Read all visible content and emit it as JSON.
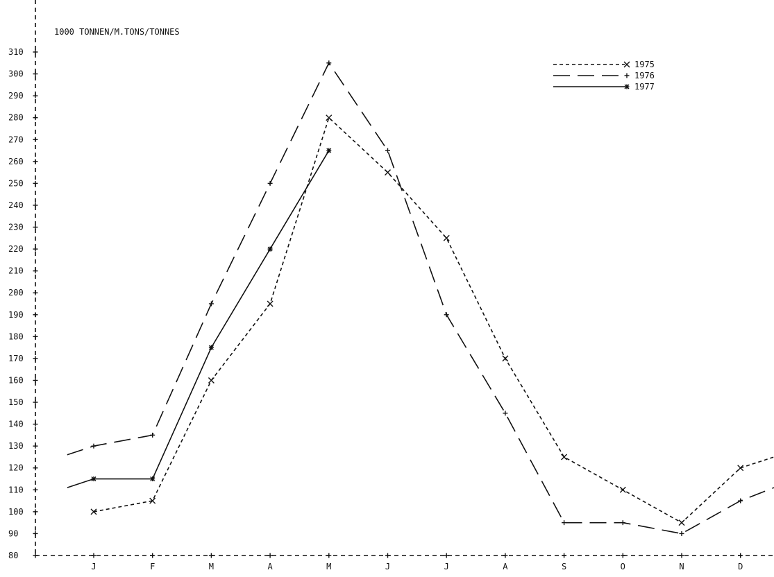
{
  "chart_data": {
    "type": "line",
    "title": "1000 TONNEN/M.TONS/TONNES",
    "categories": [
      "J",
      "F",
      "M",
      "A",
      "M",
      "J",
      "J",
      "A",
      "S",
      "O",
      "N",
      "D"
    ],
    "ylim": [
      80,
      310
    ],
    "yticks": [
      80,
      90,
      100,
      110,
      120,
      130,
      140,
      150,
      160,
      170,
      180,
      190,
      200,
      210,
      220,
      230,
      240,
      250,
      260,
      270,
      280,
      290,
      300,
      310
    ],
    "legend_position": "top-right",
    "grid": false,
    "series": [
      {
        "name": "1975",
        "marker": "X",
        "dash": "short-dash",
        "values": [
          100,
          105,
          160,
          195,
          280,
          255,
          225,
          170,
          125,
          110,
          95,
          120
        ],
        "lead_in": null,
        "lead_out": 125
      },
      {
        "name": "1976",
        "marker": "+",
        "dash": "long-dash",
        "values": [
          130,
          135,
          195,
          250,
          305,
          265,
          190,
          145,
          95,
          95,
          90,
          105
        ],
        "lead_in": 126,
        "lead_out": 111
      },
      {
        "name": "1977",
        "marker": "*",
        "dash": "solid",
        "values": [
          115,
          115,
          175,
          220,
          265,
          null,
          null,
          null,
          null,
          null,
          null,
          null
        ],
        "lead_in": 111,
        "lead_out": null
      }
    ]
  }
}
